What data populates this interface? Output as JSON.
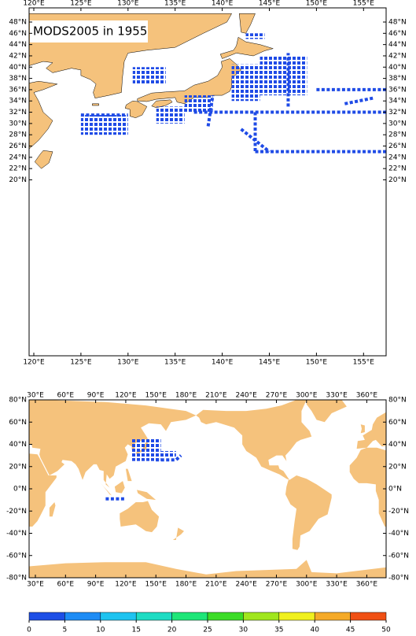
{
  "title": "MODS2005 in 1955",
  "regional_map": {
    "lon_ticks": [
      {
        "value": 120,
        "label": "120°E"
      },
      {
        "value": 125,
        "label": "125°E"
      },
      {
        "value": 130,
        "label": "130°E"
      },
      {
        "value": 135,
        "label": "135°E"
      },
      {
        "value": 140,
        "label": "140°E"
      },
      {
        "value": 145,
        "label": "145°E"
      },
      {
        "value": 150,
        "label": "150°E"
      },
      {
        "value": 155,
        "label": "155°E"
      }
    ],
    "lat_ticks": [
      {
        "value": 20,
        "label": "20°N"
      },
      {
        "value": 22,
        "label": "22°N"
      },
      {
        "value": 24,
        "label": "24°N"
      },
      {
        "value": 26,
        "label": "26°N"
      },
      {
        "value": 28,
        "label": "28°N"
      },
      {
        "value": 30,
        "label": "30°N"
      },
      {
        "value": 32,
        "label": "32°N"
      },
      {
        "value": 34,
        "label": "34°N"
      },
      {
        "value": 36,
        "label": "36°N"
      },
      {
        "value": 38,
        "label": "38°N"
      },
      {
        "value": 40,
        "label": "40°N"
      },
      {
        "value": 42,
        "label": "42°N"
      },
      {
        "value": 44,
        "label": "44°N"
      },
      {
        "value": 46,
        "label": "46°N"
      },
      {
        "value": 48,
        "label": "48°N"
      }
    ]
  },
  "world_map": {
    "lon_ticks": [
      {
        "value": 30,
        "label": "30°E"
      },
      {
        "value": 60,
        "label": "60°E"
      },
      {
        "value": 90,
        "label": "90°E"
      },
      {
        "value": 120,
        "label": "120°E"
      },
      {
        "value": 150,
        "label": "150°E"
      },
      {
        "value": 180,
        "label": "180°E"
      },
      {
        "value": 210,
        "label": "210°E"
      },
      {
        "value": 240,
        "label": "240°E"
      },
      {
        "value": 270,
        "label": "270°E"
      },
      {
        "value": 300,
        "label": "300°E"
      },
      {
        "value": 330,
        "label": "330°E"
      },
      {
        "value": 360,
        "label": "360°E"
      }
    ],
    "lat_ticks": [
      {
        "value": 80,
        "label": "80°N"
      },
      {
        "value": 60,
        "label": "60°N"
      },
      {
        "value": 40,
        "label": "40°N"
      },
      {
        "value": 20,
        "label": "20°N"
      },
      {
        "value": 0,
        "label": "0°N"
      },
      {
        "value": -20,
        "label": "-20°N"
      },
      {
        "value": -40,
        "label": "-40°N"
      },
      {
        "value": -60,
        "label": "-60°N"
      },
      {
        "value": -80,
        "label": "-80°N"
      }
    ]
  },
  "colorbar": {
    "ticks": [
      0,
      5,
      10,
      15,
      20,
      25,
      30,
      35,
      40,
      45,
      50
    ],
    "colors": [
      "#1e4fe6",
      "#1e8cf5",
      "#1ec3f0",
      "#1edcc3",
      "#1ee678",
      "#3cdc28",
      "#a0e61e",
      "#f0f01e",
      "#f5aa28",
      "#f05014"
    ]
  }
}
